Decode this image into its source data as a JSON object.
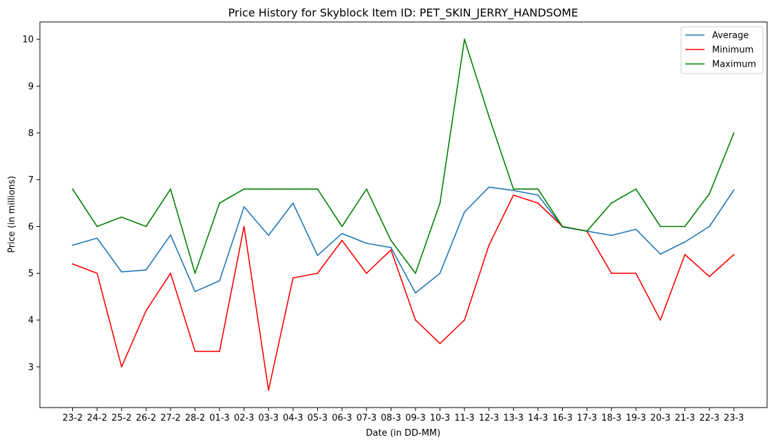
{
  "chart_data": {
    "type": "line",
    "title": "Price History for Skyblock Item ID: PET_SKIN_JERRY_HANDSOME",
    "xlabel": "Date (in DD-MM)",
    "ylabel": "Price (in millions)",
    "categories": [
      "23-2",
      "24-2",
      "25-2",
      "26-2",
      "27-2",
      "28-2",
      "01-3",
      "02-3",
      "03-3",
      "04-3",
      "05-3",
      "06-3",
      "07-3",
      "08-3",
      "09-3",
      "10-3",
      "11-3",
      "12-3",
      "13-3",
      "14-3",
      "16-3",
      "17-3",
      "18-3",
      "19-3",
      "20-3",
      "21-3",
      "22-3",
      "23-3"
    ],
    "yticks": [
      3,
      4,
      5,
      6,
      7,
      8,
      9,
      10
    ],
    "ylim": [
      2.13,
      10.37
    ],
    "grid": false,
    "legend_position": "top-right",
    "series": [
      {
        "name": "Average",
        "color": "#1f77b4",
        "values": [
          5.6,
          5.75,
          5.03,
          5.07,
          5.82,
          4.61,
          4.84,
          6.42,
          5.81,
          6.5,
          5.38,
          5.85,
          5.64,
          5.55,
          4.58,
          5.0,
          6.31,
          6.84,
          6.77,
          6.67,
          5.99,
          5.9,
          5.81,
          5.94,
          5.41,
          5.67,
          6.0,
          6.78
        ]
      },
      {
        "name": "Minimum",
        "color": "#ff0000",
        "values": [
          5.2,
          5.0,
          3.0,
          4.2,
          5.0,
          3.33,
          3.33,
          6.0,
          2.5,
          4.9,
          5.0,
          5.7,
          5.0,
          5.5,
          4.0,
          3.5,
          4.0,
          5.6,
          6.67,
          6.5,
          6.0,
          5.9,
          5.0,
          5.0,
          4.0,
          5.4,
          4.93,
          5.4
        ]
      },
      {
        "name": "Maximum",
        "color": "#008000",
        "values": [
          6.8,
          6.0,
          6.2,
          6.0,
          6.8,
          5.0,
          6.5,
          6.8,
          6.8,
          6.8,
          6.8,
          6.0,
          6.8,
          5.7,
          5.0,
          6.5,
          10.0,
          8.35,
          6.8,
          6.8,
          6.0,
          5.9,
          6.5,
          6.8,
          6.0,
          6.0,
          6.7,
          8.0
        ]
      }
    ]
  }
}
